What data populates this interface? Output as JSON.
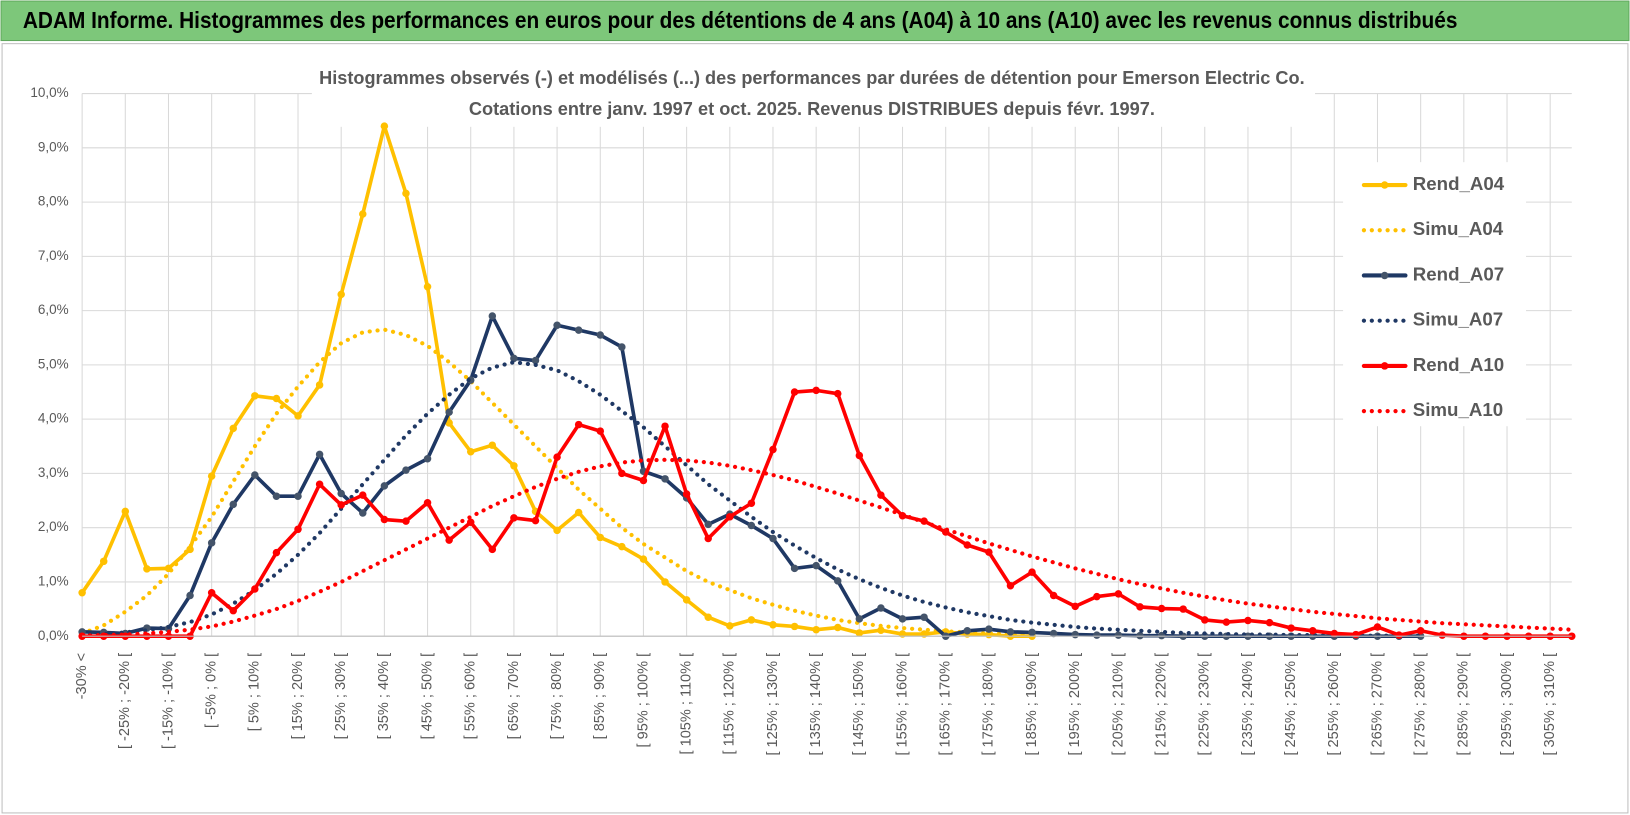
{
  "header": {
    "title": "ADAM Informe. Histogrammes des performances en euros pour des détentions de 4 ans (A04) à 10 ans (A10) avec les revenus connus distribués"
  },
  "chart_data": {
    "type": "line",
    "title": "Histogrammes observés (-) et modélisés (...) des performances par durées de détention pour Emerson Electric Co.",
    "subtitle": "Cotations entre janv. 1997 et oct. 2025.  Revenus DISTRIBUES depuis févr. 1997.",
    "categories": [
      "-30% <",
      null,
      "[ -25% ; -20% [",
      null,
      "[ -15% ; -10% [",
      null,
      "[ -5% ; 0% [",
      null,
      "[ 5% ; 10% [",
      null,
      "[ 15% ; 20% [",
      null,
      "[ 25% ; 30% [",
      null,
      "[ 35% ; 40% [",
      null,
      "[ 45% ; 50% [",
      null,
      "[ 55% ; 60% [",
      null,
      "[ 65% ; 70% [",
      null,
      "[ 75% ; 80% [",
      null,
      "[ 85% ; 90% [",
      null,
      "[ 95% ; 100% [",
      null,
      "[ 105% ; 110% [",
      null,
      "[ 115% ; 120% [",
      null,
      "[ 125% ; 130% [",
      null,
      "[ 135% ; 140% [",
      null,
      "[ 145% ; 150% [",
      null,
      "[ 155% ; 160% [",
      null,
      "[ 165% ; 170% [",
      null,
      "[ 175% ; 180% [",
      null,
      "[ 185% ; 190% [",
      null,
      "[ 195% ; 200% [",
      null,
      "[ 205% ; 210% [",
      null,
      "[ 215% ; 220% [",
      null,
      "[ 225% ; 230% [",
      null,
      "[ 235% ; 240% [",
      null,
      "[ 245% ; 250% [",
      null,
      "[ 255% ; 260% [",
      null,
      "[ 265% ; 270% [",
      null,
      "[ 275% ; 280% [",
      null,
      "[ 285% ; 290% [",
      null,
      "[ 295% ; 300% [",
      null,
      "[ 305% ; 310% [",
      null
    ],
    "series": [
      {
        "name": "Rend_A04",
        "color": "#ffc000",
        "style": "solid",
        "marker": true,
        "values": [
          0.8,
          1.38,
          2.3,
          1.24,
          1.25,
          1.6,
          2.95,
          3.83,
          4.43,
          4.38,
          4.06,
          4.63,
          6.3,
          7.78,
          9.4,
          8.16,
          6.44,
          3.93,
          3.4,
          3.52,
          3.14,
          2.3,
          1.95,
          2.28,
          1.82,
          1.65,
          1.42,
          1.0,
          0.67,
          0.35,
          0.19,
          0.3,
          0.21,
          0.18,
          0.12,
          0.16,
          0.06,
          0.11,
          0.04,
          0.04,
          0.08,
          0.04,
          0.03,
          0,
          0,
          null,
          null,
          null,
          null,
          null,
          null,
          null,
          null,
          null,
          null,
          null,
          null,
          null,
          null,
          null,
          null,
          null,
          null,
          null,
          null,
          null,
          null,
          null,
          null,
          null
        ]
      },
      {
        "name": "Simu_A04",
        "color": "#ffc000",
        "style": "dotted",
        "marker": false,
        "values": [
          0.05,
          0.2,
          0.45,
          0.75,
          1.15,
          1.65,
          2.2,
          2.85,
          3.5,
          4.1,
          4.6,
          5.05,
          5.4,
          5.6,
          5.65,
          5.55,
          5.35,
          5.05,
          4.7,
          4.3,
          3.9,
          3.5,
          3.1,
          2.7,
          2.35,
          2.0,
          1.7,
          1.45,
          1.2,
          1.0,
          0.85,
          0.7,
          0.58,
          0.47,
          0.38,
          0.3,
          0.24,
          0.19,
          0.15,
          0.12,
          0.09,
          0.07,
          0.05,
          0.04,
          0.03,
          null,
          null,
          null,
          null,
          null,
          null,
          null,
          null,
          null,
          null,
          null,
          null,
          null,
          null,
          null,
          null,
          null,
          null,
          null,
          null,
          null,
          null,
          null,
          null,
          null
        ]
      },
      {
        "name": "Rend_A07",
        "color": "#1f3864",
        "style": "solid",
        "marker": true,
        "values": [
          0.08,
          0.07,
          0.05,
          0.15,
          0.14,
          0.75,
          1.72,
          2.43,
          2.97,
          2.58,
          2.58,
          3.35,
          2.63,
          2.27,
          2.77,
          3.06,
          3.27,
          4.13,
          4.72,
          5.9,
          5.12,
          5.08,
          5.73,
          5.64,
          5.55,
          5.33,
          3.04,
          2.9,
          2.55,
          2.06,
          2.25,
          2.04,
          1.8,
          1.25,
          1.3,
          1.02,
          0.32,
          0.52,
          0.32,
          0.35,
          0,
          0.1,
          0.13,
          0.08,
          0.07,
          0.05,
          0.03,
          0.02,
          0.02,
          0.01,
          0.01,
          0,
          0,
          0,
          0,
          0,
          0,
          0,
          0,
          0,
          0,
          0,
          0,
          null,
          null,
          null,
          null,
          null,
          null,
          null
        ]
      },
      {
        "name": "Simu_A07",
        "color": "#1f3864",
        "style": "dotted",
        "marker": false,
        "values": [
          0.02,
          0.04,
          0.07,
          0.11,
          0.17,
          0.26,
          0.4,
          0.6,
          0.85,
          1.15,
          1.5,
          1.9,
          2.35,
          2.8,
          3.25,
          3.7,
          4.1,
          4.45,
          4.75,
          4.95,
          5.05,
          5.0,
          4.9,
          4.7,
          4.45,
          4.15,
          3.85,
          3.5,
          3.15,
          2.8,
          2.5,
          2.2,
          1.92,
          1.67,
          1.44,
          1.23,
          1.05,
          0.89,
          0.75,
          0.63,
          0.53,
          0.44,
          0.37,
          0.3,
          0.25,
          0.21,
          0.17,
          0.14,
          0.12,
          0.1,
          0.08,
          0.06,
          0.05,
          0.04,
          0.03,
          0.03,
          0.02,
          0.02,
          0.01,
          0.01,
          0.01,
          0.01,
          0.01,
          null,
          null,
          null,
          null,
          null,
          null,
          null
        ]
      },
      {
        "name": "Rend_A10",
        "color": "#ff0000",
        "style": "solid",
        "marker": true,
        "values": [
          0,
          0,
          0,
          0,
          0,
          0,
          0.8,
          0.47,
          0.87,
          1.54,
          1.97,
          2.8,
          2.42,
          2.6,
          2.15,
          2.12,
          2.46,
          1.77,
          2.1,
          1.6,
          2.18,
          2.13,
          3.3,
          3.9,
          3.78,
          3.0,
          2.87,
          3.87,
          2.62,
          1.8,
          2.2,
          2.45,
          3.44,
          4.5,
          4.53,
          4.47,
          3.33,
          2.6,
          2.22,
          2.12,
          1.92,
          1.68,
          1.55,
          0.93,
          1.18,
          0.75,
          0.55,
          0.73,
          0.78,
          0.54,
          0.51,
          0.5,
          0.3,
          0.26,
          0.29,
          0.25,
          0.15,
          0.1,
          0.05,
          0.03,
          0.17,
          0.02,
          0.1,
          0.02,
          0,
          0,
          0,
          0,
          0,
          0
        ]
      },
      {
        "name": "Simu_A10",
        "color": "#ff0000",
        "style": "dotted",
        "marker": false,
        "values": [
          0.01,
          0.02,
          0.03,
          0.05,
          0.08,
          0.12,
          0.18,
          0.27,
          0.38,
          0.5,
          0.65,
          0.82,
          1.0,
          1.2,
          1.4,
          1.6,
          1.8,
          2.0,
          2.2,
          2.4,
          2.58,
          2.75,
          2.9,
          3.03,
          3.13,
          3.2,
          3.24,
          3.25,
          3.24,
          3.2,
          3.14,
          3.06,
          2.97,
          2.87,
          2.75,
          2.63,
          2.5,
          2.37,
          2.24,
          2.1,
          1.97,
          1.84,
          1.71,
          1.59,
          1.47,
          1.36,
          1.25,
          1.15,
          1.05,
          0.96,
          0.88,
          0.8,
          0.73,
          0.66,
          0.6,
          0.55,
          0.5,
          0.45,
          0.41,
          0.37,
          0.33,
          0.3,
          0.27,
          0.24,
          0.22,
          0.2,
          0.18,
          0.16,
          0.14,
          0.12
        ]
      }
    ],
    "ylim": [
      0,
      10
    ],
    "yticks": [
      {
        "value": 0,
        "label": "0,0%"
      },
      {
        "value": 1,
        "label": "1,0%"
      },
      {
        "value": 2,
        "label": "2,0%"
      },
      {
        "value": 3,
        "label": "3,0%"
      },
      {
        "value": 4,
        "label": "4,0%"
      },
      {
        "value": 5,
        "label": "5,0%"
      },
      {
        "value": 6,
        "label": "6,0%"
      },
      {
        "value": 7,
        "label": "7,0%"
      },
      {
        "value": 8,
        "label": "8,0%"
      },
      {
        "value": 9,
        "label": "9,0%"
      },
      {
        "value": 10,
        "label": "10,0%"
      }
    ],
    "grid": true,
    "legend": "right"
  }
}
